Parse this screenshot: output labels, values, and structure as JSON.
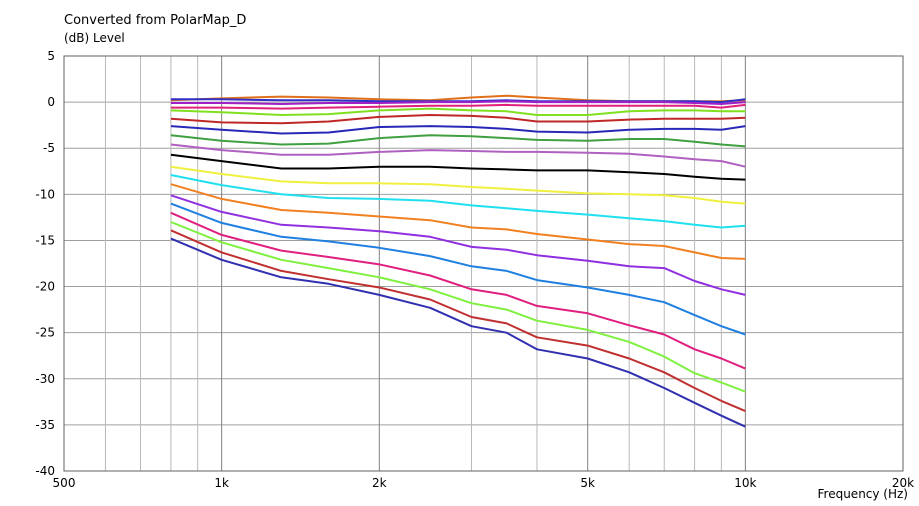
{
  "chart_data": {
    "type": "line",
    "title": "Converted from PolarMap_D",
    "ylabel": "(dB)  Level",
    "xlabel": "Frequency  (Hz)",
    "x_scale": "log",
    "xlim": [
      500,
      20000
    ],
    "ylim": [
      -40,
      5
    ],
    "grid": true,
    "x_tick_labels": [
      {
        "value": 500,
        "label": "500"
      },
      {
        "value": 1000,
        "label": "1k"
      },
      {
        "value": 2000,
        "label": "2k"
      },
      {
        "value": 5000,
        "label": "5k"
      },
      {
        "value": 10000,
        "label": "10k"
      },
      {
        "value": 20000,
        "label": "20k"
      }
    ],
    "x_minor_ticks": [
      600,
      700,
      800,
      900,
      3000,
      4000,
      6000,
      7000,
      8000,
      9000
    ],
    "y_ticks": [
      5,
      0,
      -5,
      -10,
      -15,
      -20,
      -25,
      -30,
      -35,
      -40
    ],
    "x": [
      800,
      1000,
      1300,
      1600,
      2000,
      2500,
      3000,
      3500,
      4000,
      5000,
      6000,
      7000,
      8000,
      9000,
      10000
    ],
    "series": [
      {
        "color": "#e0701a",
        "values": [
          0.2,
          0.4,
          0.6,
          0.5,
          0.3,
          0.2,
          0.5,
          0.7,
          0.5,
          0.2,
          0.1,
          0.1,
          0.1,
          0.1,
          0.2
        ]
      },
      {
        "color": "#3030c8",
        "values": [
          0.3,
          0.3,
          0.2,
          0.2,
          0.1,
          0.1,
          0.1,
          0.2,
          0.1,
          0.1,
          0.1,
          0.1,
          0.1,
          0.0,
          0.3
        ]
      },
      {
        "color": "#a020c8",
        "values": [
          -0.1,
          -0.1,
          -0.2,
          -0.1,
          -0.1,
          0.0,
          0.0,
          0.1,
          0.0,
          0.0,
          0.0,
          0.0,
          -0.1,
          -0.2,
          0.0
        ]
      },
      {
        "color": "#e0207a",
        "values": [
          -0.6,
          -0.6,
          -0.7,
          -0.6,
          -0.5,
          -0.4,
          -0.4,
          -0.3,
          -0.4,
          -0.4,
          -0.4,
          -0.4,
          -0.4,
          -0.6,
          -0.3
        ]
      },
      {
        "color": "#80e020",
        "values": [
          -0.9,
          -1.1,
          -1.4,
          -1.3,
          -0.9,
          -0.7,
          -0.9,
          -1.0,
          -1.4,
          -1.4,
          -1.0,
          -0.9,
          -0.9,
          -1.0,
          -1.0
        ]
      },
      {
        "color": "#c02828",
        "values": [
          -1.8,
          -2.2,
          -2.3,
          -2.1,
          -1.6,
          -1.4,
          -1.5,
          -1.7,
          -2.1,
          -2.1,
          -1.9,
          -1.8,
          -1.8,
          -1.8,
          -1.7
        ]
      },
      {
        "color": "#2828b8",
        "values": [
          -2.6,
          -3.0,
          -3.4,
          -3.3,
          -2.7,
          -2.6,
          -2.7,
          -2.9,
          -3.2,
          -3.3,
          -3.0,
          -2.9,
          -2.9,
          -3.0,
          -2.6
        ]
      },
      {
        "color": "#40a040",
        "values": [
          -3.6,
          -4.2,
          -4.6,
          -4.5,
          -3.9,
          -3.6,
          -3.7,
          -3.9,
          -4.1,
          -4.2,
          -4.0,
          -4.0,
          -4.3,
          -4.6,
          -4.8
        ]
      },
      {
        "color": "#b060c0",
        "values": [
          -4.6,
          -5.2,
          -5.7,
          -5.7,
          -5.4,
          -5.2,
          -5.3,
          -5.4,
          -5.4,
          -5.5,
          -5.6,
          -5.9,
          -6.2,
          -6.4,
          -7.0
        ]
      },
      {
        "color": "#000000",
        "values": [
          -5.7,
          -6.4,
          -7.2,
          -7.2,
          -7.0,
          -7.0,
          -7.2,
          -7.3,
          -7.4,
          -7.4,
          -7.6,
          -7.8,
          -8.1,
          -8.3,
          -8.4
        ]
      },
      {
        "color": "#f0f040",
        "values": [
          -7.0,
          -7.8,
          -8.6,
          -8.8,
          -8.8,
          -8.9,
          -9.2,
          -9.4,
          -9.6,
          -9.9,
          -10.0,
          -10.1,
          -10.4,
          -10.8,
          -11.0
        ]
      },
      {
        "color": "#20e0f0",
        "values": [
          -7.9,
          -9.0,
          -10.0,
          -10.4,
          -10.5,
          -10.7,
          -11.2,
          -11.5,
          -11.8,
          -12.2,
          -12.6,
          -12.9,
          -13.3,
          -13.6,
          -13.4
        ]
      },
      {
        "color": "#f08020",
        "values": [
          -8.9,
          -10.5,
          -11.7,
          -12.0,
          -12.4,
          -12.8,
          -13.6,
          -13.8,
          -14.3,
          -14.9,
          -15.4,
          -15.6,
          -16.3,
          -16.9,
          -17.0
        ]
      },
      {
        "color": "#9030e0",
        "values": [
          -10.1,
          -11.9,
          -13.3,
          -13.6,
          -14.0,
          -14.6,
          -15.7,
          -16.0,
          -16.6,
          -17.2,
          -17.8,
          -18.0,
          -19.4,
          -20.3,
          -20.9
        ]
      },
      {
        "color": "#2080e0",
        "values": [
          -11.0,
          -13.1,
          -14.6,
          -15.1,
          -15.8,
          -16.7,
          -17.8,
          -18.3,
          -19.3,
          -20.1,
          -20.9,
          -21.7,
          -23.1,
          -24.3,
          -25.2
        ]
      },
      {
        "color": "#e02080",
        "values": [
          -12.0,
          -14.4,
          -16.1,
          -16.8,
          -17.6,
          -18.8,
          -20.3,
          -20.9,
          -22.1,
          -22.9,
          -24.2,
          -25.2,
          -26.8,
          -27.8,
          -28.9
        ]
      },
      {
        "color": "#80f040",
        "values": [
          -13.0,
          -15.2,
          -17.1,
          -18.0,
          -19.0,
          -20.3,
          -21.8,
          -22.5,
          -23.7,
          -24.7,
          -26.0,
          -27.6,
          -29.4,
          -30.4,
          -31.4
        ]
      },
      {
        "color": "#c03030",
        "values": [
          -13.9,
          -16.3,
          -18.3,
          -19.2,
          -20.1,
          -21.4,
          -23.3,
          -24.0,
          -25.5,
          -26.4,
          -27.8,
          -29.3,
          -31.0,
          -32.4,
          -33.5
        ]
      },
      {
        "color": "#3030b0",
        "values": [
          -14.8,
          -17.1,
          -19.0,
          -19.7,
          -20.9,
          -22.3,
          -24.3,
          -25.0,
          -26.8,
          -27.8,
          -29.3,
          -31.0,
          -32.6,
          -34.0,
          -35.2
        ]
      }
    ]
  }
}
